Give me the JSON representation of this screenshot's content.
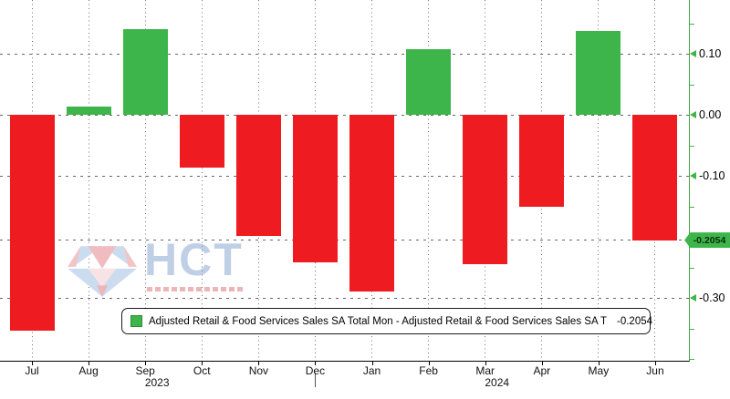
{
  "chart_data": {
    "type": "bar",
    "title": "",
    "categories": [
      "Jul",
      "Aug",
      "Sep",
      "Oct",
      "Nov",
      "Dec",
      "Jan",
      "Feb",
      "Mar",
      "Apr",
      "May",
      "Jun"
    ],
    "year_groups": [
      {
        "label": "2023",
        "under_month": "Sep"
      },
      {
        "label": "2024",
        "under_month": "Mar"
      }
    ],
    "series": [
      {
        "name": "Adjusted Retail & Food Services Sales SA Total Mon - Adjusted Retail & Food Services Sales SA T",
        "values": [
          -0.353,
          0.014,
          0.14,
          -0.086,
          -0.198,
          -0.242,
          -0.289,
          0.107,
          -0.245,
          -0.15,
          0.138,
          -0.2054
        ]
      }
    ],
    "last_value": -0.2054,
    "last_value_label": "-0.2054",
    "y_major_ticks": [
      0.1,
      0.0,
      -0.1,
      -0.3
    ],
    "y_major_tick_labels": [
      "0.10",
      "0.00",
      "-0.10",
      "-0.30"
    ],
    "y_minor_ticks": [
      0.15,
      0.05,
      -0.05,
      -0.15,
      -0.25,
      -0.35,
      -0.4
    ],
    "ylim": [
      -0.405,
      0.19
    ],
    "xlabel": "",
    "ylabel": "",
    "grid": {
      "horizontal": "dashed",
      "vertical": "dotted"
    },
    "legend_position": "bottom-center",
    "positive_color": "#3db54a",
    "negative_color": "#ee1b21"
  },
  "legend": {
    "swatch_color": "#3db54a",
    "label": "Adjusted Retail & Food Services Sales SA Total Mon - Adjusted Retail & Food Services Sales SA T",
    "value": "-0.2054"
  },
  "axis": {
    "line_color": "#46a946",
    "badge_text": "-0.2054"
  },
  "watermark": {
    "brand": "HCT"
  }
}
